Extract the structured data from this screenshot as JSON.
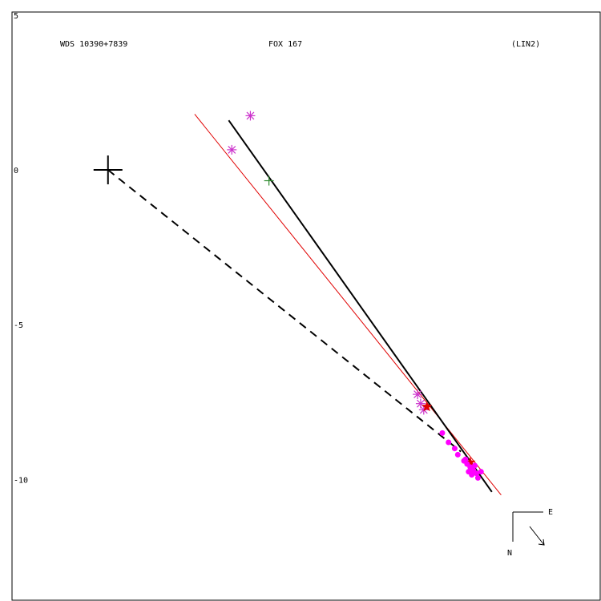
{
  "header": {
    "left": "WDS 10390+7839",
    "center": "FOX 167",
    "right": "(LIN2)"
  },
  "chart_data": {
    "type": "scatter",
    "title": "FOX 167",
    "xlim": [
      -3.1,
      15.9
    ],
    "ylim": [
      -13.9,
      5.1
    ],
    "y_ticks": [
      {
        "value": 5,
        "label": "5"
      },
      {
        "value": 0,
        "label": "0"
      },
      {
        "value": -5,
        "label": "-5"
      },
      {
        "value": -10,
        "label": "-10"
      }
    ],
    "primary": {
      "x": 0,
      "y": 0
    },
    "orbit_line": {
      "x1": 3.9,
      "y1": 1.6,
      "x2": 12.4,
      "y2": -10.4,
      "color": "#000000"
    },
    "fit_line": {
      "x1": 2.8,
      "y1": 1.8,
      "x2": 12.7,
      "y2": -10.5,
      "color": "#e00000"
    },
    "node_line": {
      "x1": 0,
      "y1": 0,
      "x2": 11.4,
      "y2": -9.1,
      "color": "#000000"
    },
    "series": [
      {
        "marker": "asterisk",
        "color": "#cc33cc",
        "points": [
          [
            4.6,
            1.75
          ],
          [
            4.0,
            0.65
          ],
          [
            10.0,
            -7.25
          ],
          [
            10.1,
            -7.55
          ],
          [
            10.2,
            -7.75
          ]
        ]
      },
      {
        "marker": "plus",
        "color": "#2e8b2e",
        "points": [
          [
            5.2,
            -0.35
          ]
        ]
      },
      {
        "marker": "star",
        "color": "#e00000",
        "points": [
          [
            10.3,
            -7.65
          ],
          [
            11.7,
            -9.45
          ]
        ]
      },
      {
        "marker": "dot",
        "color": "#ff00ff",
        "points": [
          [
            10.8,
            -8.5
          ],
          [
            11.0,
            -8.8
          ],
          [
            11.2,
            -9.0
          ],
          [
            11.3,
            -9.2
          ],
          [
            11.5,
            -9.4
          ],
          [
            11.6,
            -9.5
          ],
          [
            11.7,
            -9.6
          ],
          [
            11.8,
            -9.7
          ],
          [
            11.9,
            -9.8
          ],
          [
            11.75,
            -9.85
          ],
          [
            11.85,
            -9.55
          ],
          [
            11.95,
            -9.95
          ],
          [
            12.05,
            -9.75
          ],
          [
            11.65,
            -9.75
          ],
          [
            11.55,
            -9.35
          ]
        ]
      }
    ]
  },
  "compass": {
    "east": "E",
    "north": "N"
  }
}
